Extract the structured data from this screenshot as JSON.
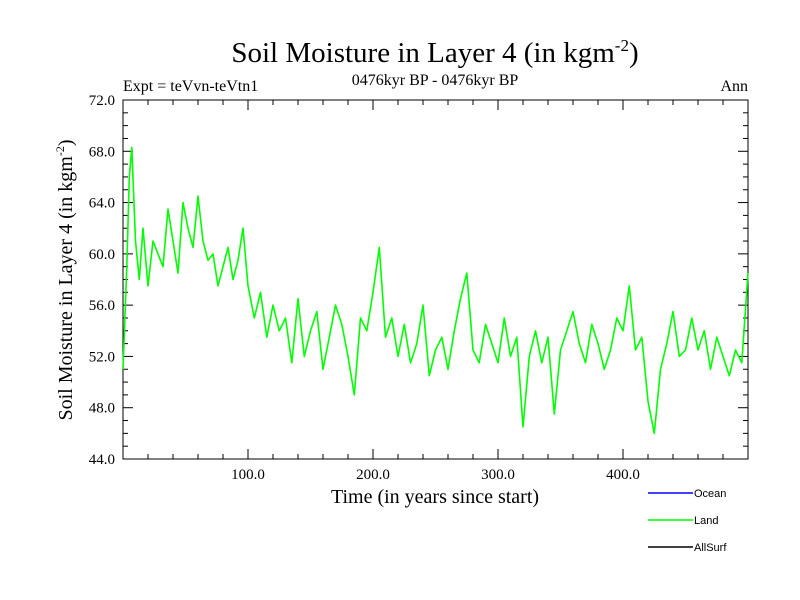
{
  "title": {
    "main": "Soil Moisture in Layer 4 (in kgm",
    "sup": "-2",
    "close": ")"
  },
  "header": {
    "left": "Expt = teVvn-teVtn1",
    "center": "0476kyr BP - 0476kyr BP",
    "right": "Ann"
  },
  "chart_data": {
    "type": "line",
    "title": "Soil Moisture in Layer 4 (in kgm-2)",
    "xlabel": "Time (in years since start)",
    "ylabel": "Soil Moisture in Layer 4 (in kgm-2)",
    "ylabel_parts": {
      "main": "Soil Moisture in Layer 4 (in kgm",
      "sup": "-2",
      "close": ")"
    },
    "xlim": [
      0,
      500
    ],
    "ylim": [
      44,
      72
    ],
    "xticks": [
      100,
      200,
      300,
      400
    ],
    "xtick_labels": [
      "100.0",
      "200.0",
      "300.0",
      "400.0"
    ],
    "yticks": [
      44,
      48,
      52,
      56,
      60,
      64,
      68,
      72
    ],
    "ytick_labels": [
      "44.0",
      "48.0",
      "52.0",
      "56.0",
      "60.0",
      "64.0",
      "68.0",
      "72.0"
    ],
    "grid": false,
    "legend_position": "bottom-right",
    "series": [
      {
        "name": "Ocean",
        "color": "#0000ff",
        "values": []
      },
      {
        "name": "Land",
        "color": "#00ff00",
        "x": [
          0,
          3,
          5,
          7,
          10,
          13,
          16,
          20,
          24,
          28,
          32,
          36,
          40,
          44,
          48,
          52,
          56,
          60,
          64,
          68,
          72,
          76,
          80,
          84,
          88,
          92,
          96,
          100,
          105,
          110,
          115,
          120,
          125,
          130,
          135,
          140,
          145,
          150,
          155,
          160,
          165,
          170,
          175,
          180,
          185,
          190,
          195,
          200,
          205,
          210,
          215,
          220,
          225,
          230,
          235,
          240,
          245,
          250,
          255,
          260,
          265,
          270,
          275,
          280,
          285,
          290,
          295,
          300,
          305,
          310,
          315,
          320,
          325,
          330,
          335,
          340,
          345,
          350,
          355,
          360,
          365,
          370,
          375,
          380,
          385,
          390,
          395,
          400,
          405,
          410,
          415,
          420,
          425,
          430,
          435,
          440,
          445,
          450,
          455,
          460,
          465,
          470,
          475,
          480,
          485,
          490,
          495,
          500
        ],
        "values": [
          51.0,
          59.0,
          66.0,
          68.3,
          61.0,
          58.0,
          62.0,
          57.5,
          61.0,
          60.0,
          59.0,
          63.5,
          61.0,
          58.5,
          64.0,
          62.0,
          60.5,
          64.5,
          61.0,
          59.5,
          60.0,
          57.5,
          59.0,
          60.5,
          58.0,
          59.5,
          62.0,
          57.5,
          55.0,
          57.0,
          53.5,
          56.0,
          54.0,
          55.0,
          51.5,
          56.5,
          52.0,
          54.0,
          55.5,
          51.0,
          53.5,
          56.0,
          54.5,
          52.0,
          49.0,
          55.0,
          54.0,
          57.0,
          60.5,
          53.5,
          55.0,
          52.0,
          54.5,
          51.5,
          53.0,
          56.0,
          50.5,
          52.5,
          53.5,
          51.0,
          54.0,
          56.5,
          58.5,
          52.5,
          51.5,
          54.5,
          53.0,
          51.5,
          55.0,
          52.0,
          53.5,
          46.5,
          52.0,
          54.0,
          51.5,
          53.5,
          47.5,
          52.5,
          54.0,
          55.5,
          53.0,
          51.5,
          54.5,
          53.0,
          51.0,
          52.5,
          55.0,
          54.0,
          57.5,
          52.5,
          53.5,
          48.5,
          46.0,
          51.0,
          53.0,
          55.5,
          52.0,
          52.5,
          55.0,
          52.5,
          54.0,
          51.0,
          53.5,
          52.0,
          50.5,
          52.5,
          51.5,
          58.5
        ]
      },
      {
        "name": "AllSurf",
        "color": "#000000",
        "values": []
      }
    ]
  }
}
